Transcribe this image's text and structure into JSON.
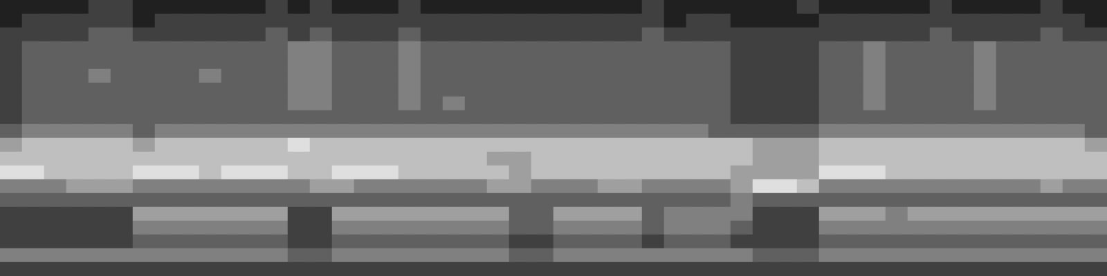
{
  "chart_data": {
    "type": "heatmap",
    "tick_labels": false,
    "grid": false,
    "color": [
      "#000000",
      "#ffffff"
    ],
    "zlim": [
      0,
      8
    ],
    "cells": [
      [
        1,
        1,
        1,
        1,
        2,
        2,
        1,
        1,
        1,
        1,
        1,
        1,
        2,
        1,
        2,
        1,
        1,
        1,
        2,
        1,
        1,
        1,
        1,
        1,
        1,
        1,
        1,
        1,
        1,
        2,
        1,
        1,
        1,
        1,
        1,
        1,
        2,
        1,
        1,
        1,
        1,
        1,
        2,
        1,
        1,
        1,
        1,
        2,
        1,
        1
      ],
      [
        1,
        2,
        2,
        2,
        2,
        2,
        1,
        2,
        2,
        2,
        2,
        2,
        2,
        2,
        2,
        2,
        2,
        2,
        2,
        2,
        2,
        2,
        2,
        2,
        2,
        2,
        2,
        2,
        2,
        2,
        1,
        2,
        2,
        1,
        1,
        1,
        1,
        2,
        2,
        2,
        2,
        2,
        2,
        2,
        2,
        2,
        2,
        2,
        2,
        1
      ],
      [
        2,
        2,
        2,
        2,
        3,
        3,
        2,
        2,
        2,
        2,
        2,
        2,
        3,
        2,
        3,
        2,
        2,
        2,
        3,
        2,
        2,
        2,
        2,
        2,
        2,
        2,
        2,
        2,
        2,
        3,
        2,
        2,
        2,
        2,
        2,
        2,
        2,
        2,
        2,
        2,
        2,
        2,
        3,
        2,
        2,
        2,
        2,
        3,
        2,
        2
      ],
      [
        2,
        3,
        3,
        3,
        3,
        3,
        3,
        3,
        3,
        3,
        3,
        3,
        3,
        4,
        4,
        3,
        3,
        3,
        4,
        3,
        3,
        3,
        3,
        3,
        3,
        3,
        3,
        3,
        3,
        3,
        3,
        3,
        3,
        2,
        2,
        2,
        2,
        3,
        3,
        4,
        3,
        3,
        3,
        3,
        4,
        3,
        3,
        3,
        3,
        3
      ],
      [
        2,
        3,
        3,
        3,
        3,
        3,
        3,
        3,
        3,
        3,
        3,
        3,
        3,
        4,
        4,
        3,
        3,
        3,
        4,
        3,
        3,
        3,
        3,
        3,
        3,
        3,
        3,
        3,
        3,
        3,
        3,
        3,
        3,
        2,
        2,
        2,
        2,
        3,
        3,
        4,
        3,
        3,
        3,
        3,
        4,
        3,
        3,
        3,
        3,
        3
      ],
      [
        2,
        3,
        3,
        3,
        4,
        3,
        3,
        3,
        3,
        4,
        3,
        3,
        3,
        4,
        4,
        3,
        3,
        3,
        4,
        3,
        3,
        3,
        3,
        3,
        3,
        3,
        3,
        3,
        3,
        3,
        3,
        3,
        3,
        2,
        2,
        2,
        2,
        3,
        3,
        4,
        3,
        3,
        3,
        3,
        4,
        3,
        3,
        3,
        3,
        3
      ],
      [
        2,
        3,
        3,
        3,
        3,
        3,
        3,
        3,
        3,
        3,
        3,
        3,
        3,
        4,
        4,
        3,
        3,
        3,
        4,
        3,
        3,
        3,
        3,
        3,
        3,
        3,
        3,
        3,
        3,
        3,
        3,
        3,
        3,
        2,
        2,
        2,
        2,
        3,
        3,
        4,
        3,
        3,
        3,
        3,
        4,
        3,
        3,
        3,
        3,
        3
      ],
      [
        2,
        3,
        3,
        3,
        3,
        3,
        3,
        3,
        3,
        3,
        3,
        3,
        3,
        4,
        4,
        3,
        3,
        3,
        4,
        3,
        4,
        3,
        3,
        3,
        3,
        3,
        3,
        3,
        3,
        3,
        3,
        3,
        3,
        2,
        2,
        2,
        2,
        3,
        3,
        4,
        3,
        3,
        3,
        3,
        4,
        3,
        3,
        3,
        3,
        3
      ],
      [
        2,
        3,
        3,
        3,
        3,
        3,
        3,
        3,
        3,
        3,
        3,
        3,
        3,
        3,
        3,
        3,
        3,
        3,
        3,
        3,
        3,
        3,
        3,
        3,
        3,
        3,
        3,
        3,
        3,
        3,
        3,
        3,
        3,
        2,
        2,
        2,
        2,
        3,
        3,
        3,
        3,
        3,
        3,
        3,
        3,
        3,
        3,
        3,
        3,
        3
      ],
      [
        3,
        4,
        4,
        4,
        4,
        4,
        3,
        4,
        4,
        4,
        4,
        4,
        4,
        4,
        4,
        4,
        4,
        4,
        4,
        4,
        4,
        4,
        4,
        4,
        4,
        4,
        4,
        4,
        4,
        4,
        4,
        4,
        3,
        3,
        3,
        3,
        3,
        4,
        4,
        4,
        4,
        4,
        4,
        4,
        4,
        4,
        4,
        4,
        4,
        3
      ],
      [
        5,
        6,
        6,
        6,
        6,
        6,
        5,
        6,
        6,
        6,
        6,
        6,
        6,
        7,
        6,
        6,
        6,
        6,
        6,
        6,
        6,
        6,
        6,
        6,
        6,
        6,
        6,
        6,
        6,
        6,
        6,
        6,
        6,
        6,
        5,
        5,
        5,
        6,
        6,
        6,
        6,
        6,
        6,
        6,
        6,
        6,
        6,
        6,
        6,
        5
      ],
      [
        6,
        6,
        6,
        6,
        6,
        6,
        6,
        6,
        6,
        6,
        6,
        6,
        6,
        6,
        6,
        6,
        6,
        6,
        6,
        6,
        6,
        6,
        5,
        5,
        6,
        6,
        6,
        6,
        6,
        6,
        6,
        6,
        6,
        6,
        5,
        5,
        5,
        6,
        6,
        6,
        6,
        6,
        6,
        6,
        6,
        6,
        6,
        6,
        6,
        6
      ],
      [
        7,
        7,
        6,
        6,
        6,
        6,
        7,
        7,
        7,
        6,
        7,
        7,
        7,
        6,
        6,
        7,
        7,
        7,
        6,
        6,
        6,
        6,
        6,
        5,
        6,
        6,
        6,
        6,
        6,
        6,
        6,
        6,
        6,
        5,
        5,
        5,
        5,
        7,
        7,
        7,
        6,
        6,
        6,
        6,
        6,
        6,
        6,
        6,
        6,
        6
      ],
      [
        4,
        4,
        4,
        5,
        5,
        5,
        4,
        4,
        4,
        4,
        4,
        4,
        4,
        4,
        5,
        5,
        4,
        4,
        4,
        4,
        4,
        4,
        5,
        5,
        4,
        4,
        4,
        5,
        5,
        4,
        4,
        4,
        4,
        5,
        7,
        7,
        6,
        4,
        4,
        4,
        4,
        4,
        4,
        4,
        4,
        4,
        4,
        5,
        4,
        4
      ],
      [
        3,
        3,
        3,
        3,
        3,
        3,
        3,
        3,
        3,
        3,
        3,
        3,
        3,
        3,
        3,
        3,
        3,
        3,
        3,
        3,
        3,
        3,
        3,
        3,
        3,
        3,
        3,
        3,
        3,
        3,
        3,
        3,
        3,
        4,
        3,
        3,
        3,
        3,
        3,
        3,
        3,
        3,
        3,
        3,
        3,
        3,
        3,
        3,
        3,
        3
      ],
      [
        2,
        2,
        2,
        2,
        2,
        2,
        5,
        5,
        5,
        5,
        5,
        5,
        5,
        2,
        2,
        5,
        5,
        5,
        5,
        5,
        5,
        5,
        5,
        3,
        3,
        5,
        5,
        5,
        5,
        3,
        4,
        4,
        4,
        4,
        2,
        2,
        2,
        5,
        5,
        5,
        4,
        5,
        5,
        5,
        5,
        5,
        5,
        5,
        5,
        5
      ],
      [
        2,
        2,
        2,
        2,
        2,
        2,
        4,
        4,
        4,
        4,
        4,
        4,
        4,
        2,
        2,
        4,
        4,
        4,
        4,
        4,
        4,
        4,
        4,
        3,
        3,
        4,
        4,
        4,
        4,
        3,
        4,
        4,
        4,
        3,
        2,
        2,
        2,
        4,
        4,
        4,
        4,
        4,
        4,
        4,
        4,
        4,
        4,
        4,
        4,
        4
      ],
      [
        2,
        2,
        2,
        2,
        2,
        2,
        3,
        3,
        3,
        3,
        3,
        3,
        3,
        2,
        2,
        3,
        3,
        3,
        3,
        3,
        3,
        3,
        3,
        2,
        2,
        3,
        3,
        3,
        3,
        2,
        3,
        3,
        3,
        2,
        2,
        2,
        2,
        3,
        3,
        3,
        3,
        3,
        3,
        3,
        3,
        3,
        3,
        3,
        3,
        3
      ],
      [
        4,
        4,
        4,
        4,
        4,
        4,
        4,
        4,
        4,
        4,
        4,
        4,
        4,
        3,
        3,
        4,
        4,
        4,
        4,
        4,
        4,
        4,
        4,
        3,
        3,
        4,
        4,
        4,
        4,
        4,
        4,
        4,
        4,
        4,
        3,
        3,
        3,
        4,
        4,
        4,
        4,
        4,
        4,
        4,
        4,
        4,
        4,
        4,
        4,
        4
      ],
      [
        2,
        2,
        2,
        2,
        2,
        2,
        2,
        2,
        2,
        2,
        2,
        2,
        2,
        2,
        2,
        2,
        2,
        2,
        2,
        2,
        2,
        2,
        2,
        2,
        2,
        2,
        2,
        2,
        2,
        2,
        2,
        2,
        2,
        2,
        2,
        2,
        2,
        2,
        2,
        2,
        2,
        2,
        2,
        2,
        2,
        2,
        2,
        2,
        2,
        2
      ]
    ]
  }
}
